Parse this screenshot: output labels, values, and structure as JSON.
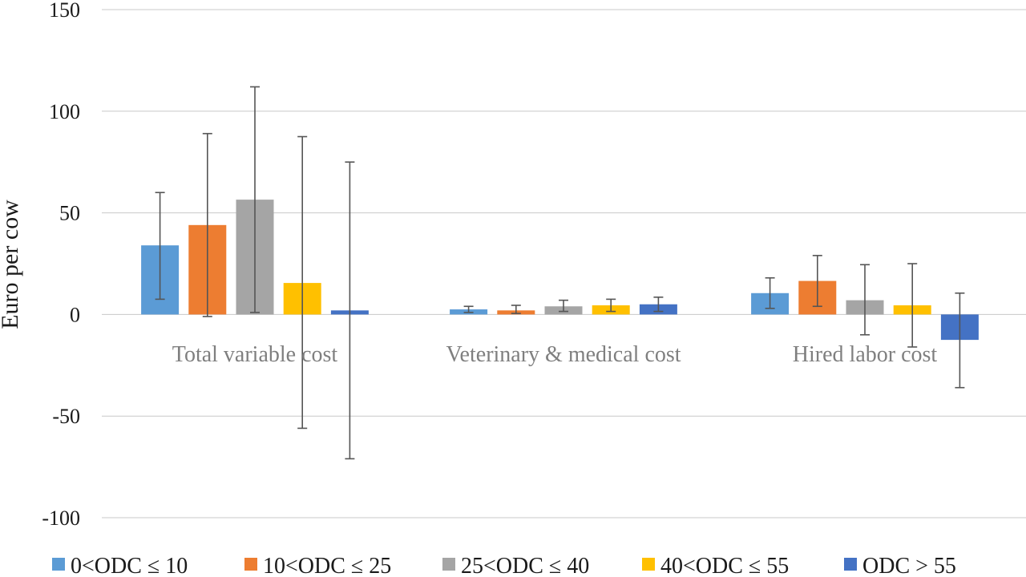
{
  "chart_data": {
    "type": "bar",
    "title": "",
    "xlabel": "",
    "ylabel": "Euro per cow",
    "ylim": [
      -100,
      150
    ],
    "yticks": [
      150,
      100,
      50,
      0,
      -50,
      -100
    ],
    "grid": true,
    "legend_position": "bottom",
    "categories": [
      "Total variable cost",
      "Veterinary & medical cost",
      "Hired labor cost"
    ],
    "series": [
      {
        "name": "0<ODC ≤ 10",
        "color": "#5b9bd5",
        "values": [
          34,
          2.5,
          10.5
        ],
        "err_low": [
          7.5,
          1,
          3
        ],
        "err_high": [
          60,
          4,
          18
        ]
      },
      {
        "name": "10<ODC ≤ 25",
        "color": "#ed7d31",
        "values": [
          44,
          2,
          16.5
        ],
        "err_low": [
          -1,
          0.5,
          4
        ],
        "err_high": [
          89,
          4.5,
          29
        ]
      },
      {
        "name": "25<ODC ≤ 40",
        "color": "#a5a5a5",
        "values": [
          56.5,
          4,
          7
        ],
        "err_low": [
          1,
          1.5,
          -10
        ],
        "err_high": [
          112,
          7,
          24.5
        ]
      },
      {
        "name": "40<ODC ≤ 55",
        "color": "#ffc000",
        "values": [
          15.5,
          4.5,
          4.5
        ],
        "err_low": [
          -56,
          1.5,
          -16
        ],
        "err_high": [
          87.5,
          7.5,
          25
        ]
      },
      {
        "name": "ODC > 55",
        "color": "#4472c4",
        "values": [
          2,
          5,
          -12.5
        ],
        "err_low": [
          -71,
          1.5,
          -36
        ],
        "err_high": [
          75,
          8.5,
          10.5
        ]
      }
    ]
  }
}
